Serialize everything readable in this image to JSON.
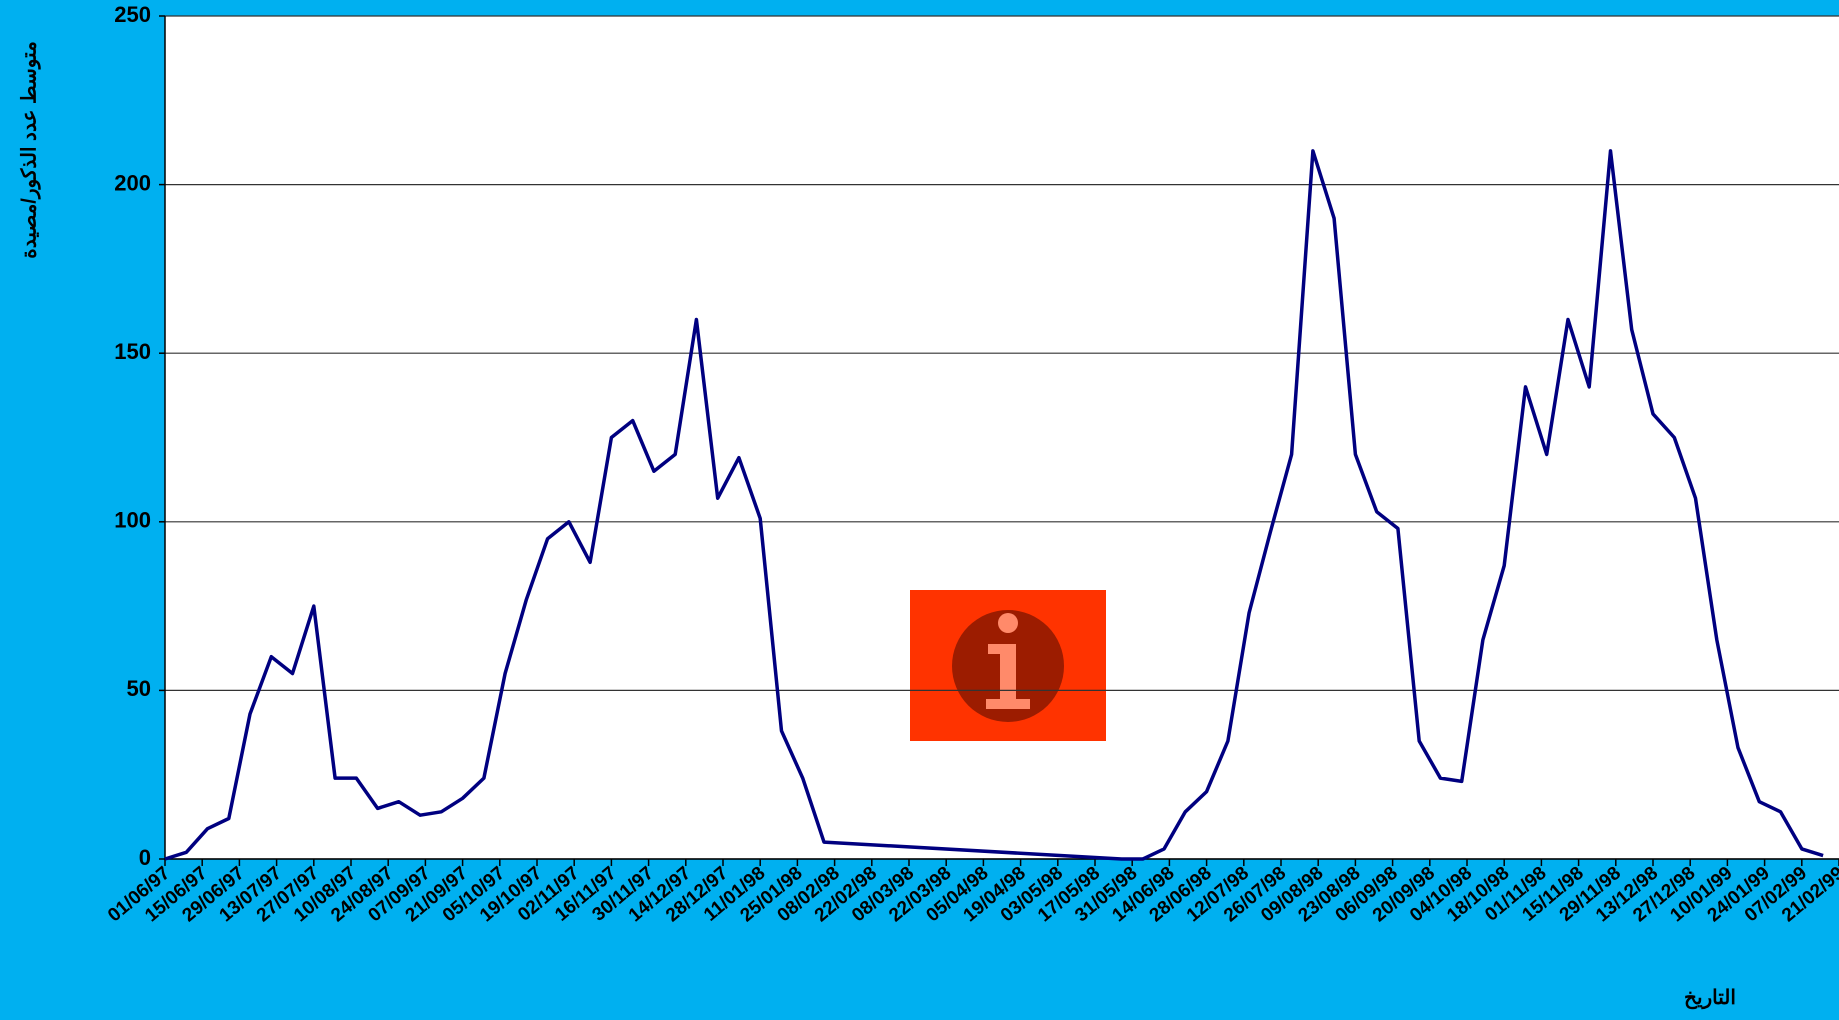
{
  "chart_data": {
    "type": "line",
    "y_label": "متوسط عدد الذكور/مصيدة",
    "x_label": "التاريخ",
    "x": [
      "01/06/97",
      "09/06/97",
      "17/06/97",
      "25/06/97",
      "03/07/97",
      "11/07/97",
      "19/07/97",
      "27/07/97",
      "04/08/97",
      "12/08/97",
      "20/08/97",
      "28/08/97",
      "05/09/97",
      "13/09/97",
      "21/09/97",
      "29/09/97",
      "07/10/97",
      "15/10/97",
      "23/10/97",
      "31/10/97",
      "08/11/97",
      "16/11/97",
      "24/11/97",
      "02/12/97",
      "10/12/97",
      "18/12/97",
      "26/12/97",
      "03/01/98",
      "11/01/98",
      "19/01/98",
      "27/01/98",
      "04/02/98",
      "27/05/98",
      "04/06/98",
      "12/06/98",
      "20/06/98",
      "28/06/98",
      "06/07/98",
      "14/07/98",
      "22/07/98",
      "30/07/98",
      "07/08/98",
      "15/08/98",
      "23/08/98",
      "31/08/98",
      "08/09/98",
      "16/09/98",
      "24/09/98",
      "02/10/98",
      "10/10/98",
      "18/10/98",
      "26/10/98",
      "03/11/98",
      "11/11/98",
      "19/11/98",
      "27/11/98",
      "05/12/98",
      "13/12/98",
      "21/12/98",
      "29/12/98",
      "06/01/99",
      "14/01/99",
      "22/01/99",
      "30/01/99",
      "07/02/99",
      "15/02/99"
    ],
    "series": [
      {
        "name": "متوسط عدد الذكور/مصيدة",
        "color": "#000080",
        "values": [
          0,
          2,
          9,
          12,
          43,
          60,
          55,
          75,
          24,
          24,
          15,
          17,
          13,
          14,
          18,
          24,
          55,
          77,
          95,
          100,
          88,
          125,
          130,
          115,
          120,
          160,
          107,
          119,
          101,
          38,
          24,
          5,
          0,
          0,
          3,
          14,
          20,
          35,
          73,
          97,
          120,
          210,
          190,
          120,
          103,
          98,
          35,
          24,
          23,
          65,
          87,
          140,
          120,
          160,
          140,
          210,
          157,
          132,
          125,
          107,
          65,
          33,
          17,
          14,
          3,
          1
        ]
      }
    ],
    "xlim": [
      "01/06/97",
      "21/02/99"
    ],
    "xticks": [
      "01/06/97",
      "15/06/97",
      "29/06/97",
      "13/07/97",
      "27/07/97",
      "10/08/97",
      "24/08/97",
      "07/09/97",
      "21/09/97",
      "05/10/97",
      "19/10/97",
      "02/11/97",
      "16/11/97",
      "30/11/97",
      "14/12/97",
      "28/12/97",
      "11/01/98",
      "25/01/98",
      "08/02/98",
      "22/02/98",
      "08/03/98",
      "22/03/98",
      "05/04/98",
      "19/04/98",
      "03/05/98",
      "17/05/98",
      "31/05/98",
      "14/06/98",
      "28/06/98",
      "12/07/98",
      "26/07/98",
      "09/08/98",
      "23/08/98",
      "06/09/98",
      "20/09/98",
      "04/10/98",
      "18/10/98",
      "01/11/98",
      "15/11/98",
      "29/11/98",
      "13/12/98",
      "27/12/98",
      "10/01/99",
      "24/01/99",
      "07/02/99",
      "21/02/99"
    ],
    "ylim": [
      0,
      250
    ],
    "yticks": [
      0,
      50,
      100,
      150,
      200,
      250
    ],
    "grid": true
  }
}
